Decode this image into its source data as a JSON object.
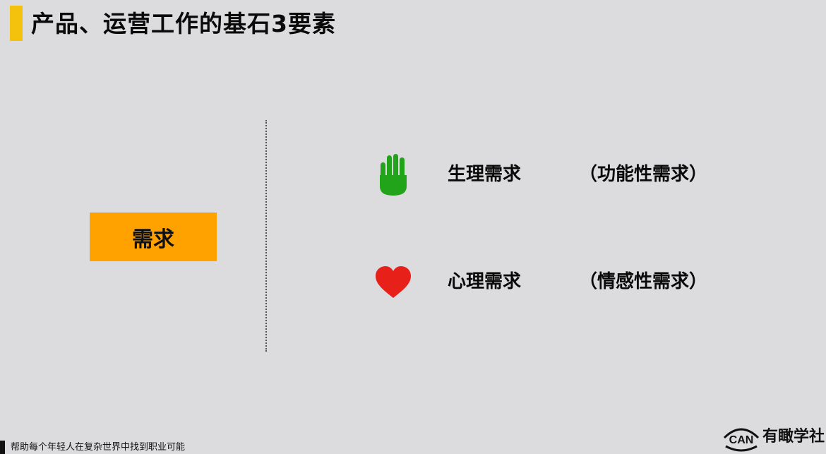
{
  "slide": {
    "title": "产品、运营工作的基石3要素",
    "accent_color": "#f4c20d"
  },
  "need": {
    "label": "需求",
    "color": "#ffa200"
  },
  "needs": [
    {
      "icon": "hand-icon",
      "icon_color": "#21a41a",
      "label": "生理需求",
      "note": "（功能性需求）"
    },
    {
      "icon": "heart-icon",
      "icon_color": "#e8201a",
      "label": "心理需求",
      "note": "（情感性需求）"
    }
  ],
  "footer": {
    "slogan": "帮助每个年轻人在复杂世界中找到职业可能"
  },
  "logo": {
    "mark": "CAN",
    "name": "有瞰学社"
  }
}
